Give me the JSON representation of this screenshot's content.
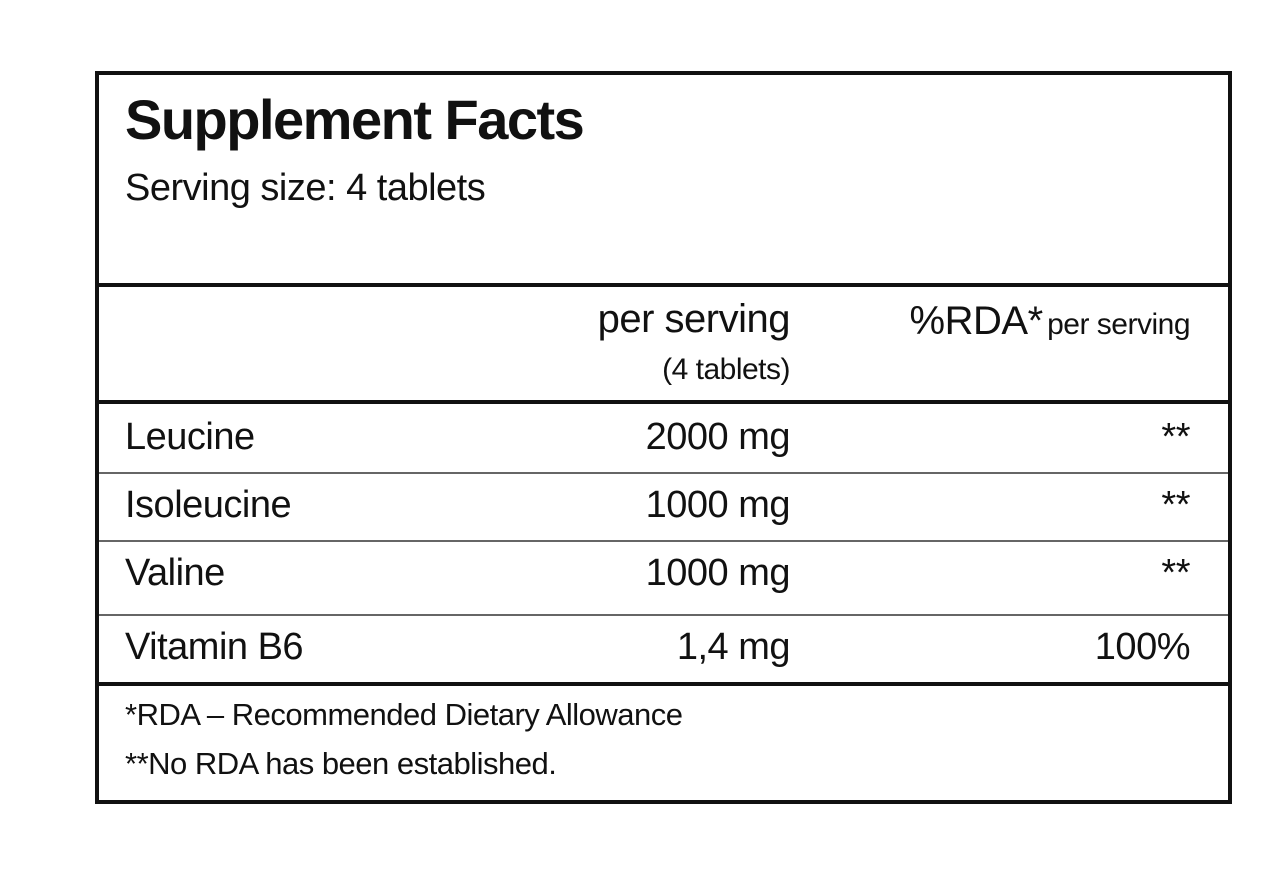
{
  "header": {
    "title": "Supplement Facts",
    "serving_size": "Serving size: 4 tablets"
  },
  "table": {
    "columns": [
      {
        "main": "per serving",
        "sub": "(4 tablets)"
      },
      {
        "main": "%RDA*",
        "sub": "per serving"
      }
    ],
    "rows": [
      [
        "Leucine",
        "2000 mg",
        "**"
      ],
      [
        "Isoleucine",
        "1000 mg",
        "**"
      ],
      [
        "Valine",
        "1000 mg",
        "**"
      ],
      [
        "Vitamin B6",
        "1,4 mg",
        "100%"
      ]
    ]
  },
  "footnotes": [
    "*RDA – Recommended Dietary Allowance",
    "**No RDA has been established."
  ]
}
